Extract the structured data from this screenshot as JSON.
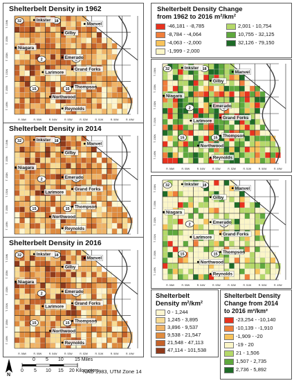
{
  "panels": {
    "p1962": "Shelterbelt Density in 1962",
    "p2014": "Shelterbelt Density in 2014",
    "p2016": "Shelterbelt Density in 2016"
  },
  "places": [
    "Inkster",
    "Gilby",
    "Manvel",
    "Niagara",
    "Larimore",
    "Emerado",
    "Grand Forks",
    "Thompson",
    "Northwood",
    "Reynolds"
  ],
  "roads": [
    "32",
    "18",
    "2",
    "2",
    "15",
    "15"
  ],
  "township_labels": [
    "T. 154N",
    "T. 153N",
    "T. 152N",
    "T. 151N",
    "T. 150N",
    "T. 149N"
  ],
  "range_labels": [
    "R. 56W",
    "R. 55W",
    "R. 54W",
    "R. 53W",
    "R. 52W",
    "R. 51W",
    "R. 50W",
    "R. 49W"
  ],
  "legend_change_1962": {
    "title_line1": "Shelterbelt Density Change",
    "title_line2": "from 1962 to 2016 m²/km²",
    "items": [
      {
        "label": "-46,181 - -8,785",
        "color": "#e8321e"
      },
      {
        "label": "-8,784 - -4,064",
        "color": "#f07e3a"
      },
      {
        "label": "-4,063 - -2,000",
        "color": "#f8c35a"
      },
      {
        "label": "-1,999 - 2,000",
        "color": "#fbf6c8"
      },
      {
        "label": "2,001 - 10,754",
        "color": "#b5d96a"
      },
      {
        "label": "10,755 - 32,125",
        "color": "#5ea83d"
      },
      {
        "label": "32,126 - 79,150",
        "color": "#1e6b27"
      }
    ]
  },
  "legend_density": {
    "title_line1": "Shelterbelt",
    "title_line2": "Density m²/km²",
    "items": [
      {
        "label": "0 - 1,244",
        "color": "#fdf6d0"
      },
      {
        "label": "1,245 - 3,895",
        "color": "#f8dc95"
      },
      {
        "label": "3,896 - 9,537",
        "color": "#f0b366"
      },
      {
        "label": "9,538 - 21,547",
        "color": "#df8b3e"
      },
      {
        "label": "21,548 - 47,113",
        "color": "#c5622a"
      },
      {
        "label": "47,114 - 101,538",
        "color": "#8f3a1b"
      }
    ]
  },
  "legend_change_2014": {
    "title_line1": "Shelterbelt Density",
    "title_line2": "Change from 2014",
    "title_line3": "to 2016 m²/km²",
    "items": [
      {
        "label": "-23,254 - -10,140",
        "color": "#e8321e"
      },
      {
        "label": "-10,139 - -1,910",
        "color": "#f07e3a"
      },
      {
        "label": "-1,909 - -20",
        "color": "#f8c35a"
      },
      {
        "label": "-19 - 20",
        "color": "#fbf6c8"
      },
      {
        "label": "21 - 1,506",
        "color": "#b5d96a"
      },
      {
        "label": "1,507 - 2,735",
        "color": "#5ea83d"
      },
      {
        "label": "2,736 - 5,892",
        "color": "#1e6b27"
      }
    ]
  },
  "scalebar": {
    "miles_ticks": [
      "0",
      "5",
      "10",
      "15 Miles"
    ],
    "km_ticks": [
      "0",
      "5",
      "10",
      "15",
      "20 Kilometers"
    ]
  },
  "north_label": "N",
  "projection": "NAD 1983, UTM Zone 14",
  "colors": {
    "river": "#3a3a3a",
    "road": "#222222",
    "grid": "#c8c8c8"
  }
}
